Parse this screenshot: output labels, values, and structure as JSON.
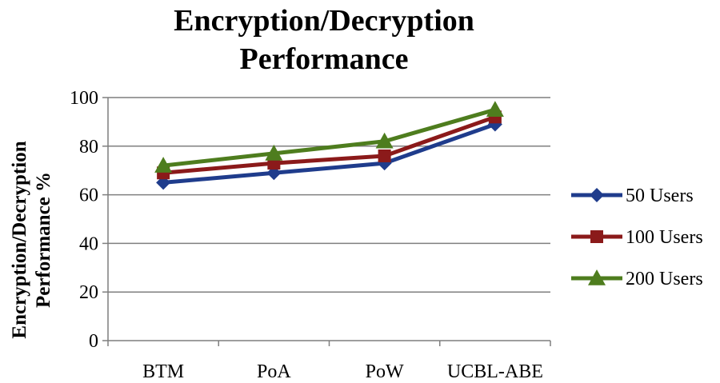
{
  "chart_data": {
    "type": "line",
    "title": [
      "Encryption/Decryption",
      "Performance"
    ],
    "ylabel": [
      "Encryption/Decryption",
      "Performance %"
    ],
    "xlabel": "",
    "categories": [
      "BTM",
      "PoA",
      "PoW",
      "UCBL-ABE"
    ],
    "yticks": [
      "0",
      "20",
      "40",
      "60",
      "80",
      "100"
    ],
    "ylim": [
      0,
      100
    ],
    "grid": true,
    "legend_position": "right",
    "series": [
      {
        "name": "50 Users",
        "values": [
          65,
          69,
          73,
          89
        ],
        "color": "#1f3c8c",
        "marker": "diamond"
      },
      {
        "name": "100 Users",
        "values": [
          69,
          73,
          76,
          92
        ],
        "color": "#8b1a1a",
        "marker": "square"
      },
      {
        "name": "200 Users",
        "values": [
          72,
          77,
          82,
          95
        ],
        "color": "#4e7d1e",
        "marker": "triangle"
      }
    ]
  }
}
